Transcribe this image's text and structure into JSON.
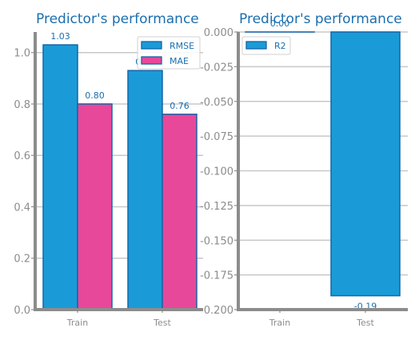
{
  "chart_data": [
    {
      "type": "bar",
      "title": "Predictor's performance",
      "categories": [
        "Train",
        "Test"
      ],
      "series": [
        {
          "name": "RMSE",
          "values": [
            1.03,
            0.93
          ],
          "labels": [
            "1.03",
            "0.93"
          ],
          "color": "#1a9bd7"
        },
        {
          "name": "MAE",
          "values": [
            0.8,
            0.76
          ],
          "labels": [
            "0.80",
            "0.76"
          ],
          "color": "#e8489a"
        }
      ],
      "ylim": [
        0,
        1.08
      ],
      "yticks": [
        0.0,
        0.2,
        0.4,
        0.6,
        0.8,
        1.0
      ],
      "ytick_labels": [
        "0.0",
        "0.2",
        "0.4",
        "0.6",
        "0.8",
        "1.0"
      ],
      "grid": true,
      "legend": "top-right"
    },
    {
      "type": "bar",
      "title": "Predictor's performance",
      "categories": [
        "Train",
        "Test"
      ],
      "series": [
        {
          "name": "R2",
          "values": [
            0.0,
            -0.19
          ],
          "labels": [
            "0.00",
            "-0.19"
          ],
          "color": "#1a9bd7"
        }
      ],
      "ylim": [
        -0.2,
        0.0
      ],
      "yticks": [
        0.0,
        -0.025,
        -0.05,
        -0.075,
        -0.1,
        -0.125,
        -0.15,
        -0.175,
        -0.2
      ],
      "ytick_labels": [
        "0.000",
        "-0.025",
        "-0.050",
        "-0.075",
        "-0.100",
        "-0.125",
        "-0.150",
        "-0.175",
        "-0.200"
      ],
      "grid": true,
      "legend": "top-left"
    }
  ]
}
